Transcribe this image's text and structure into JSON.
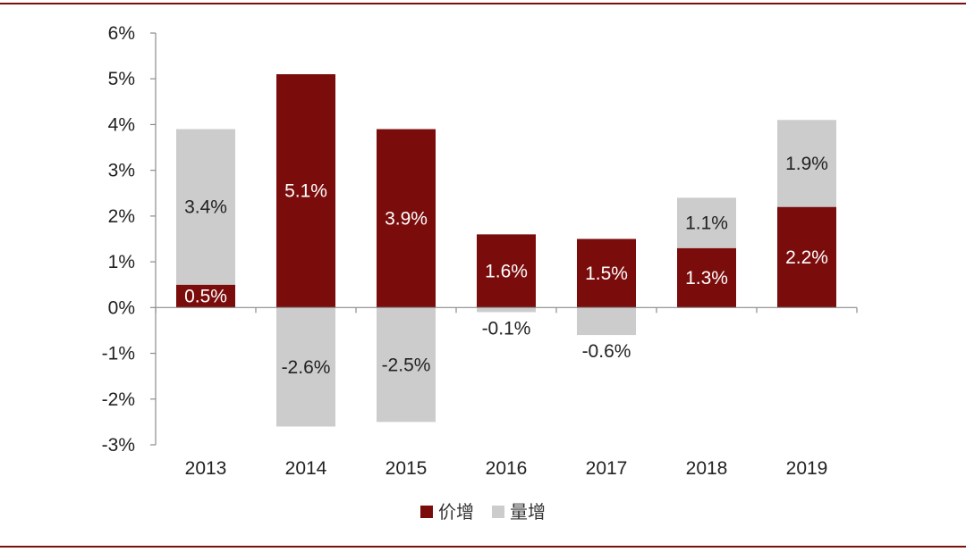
{
  "chart_data": {
    "type": "bar",
    "stacked": true,
    "categories": [
      "2013",
      "2014",
      "2015",
      "2016",
      "2017",
      "2018",
      "2019"
    ],
    "series": [
      {
        "name": "价增",
        "color": "#7b0c0c",
        "values": [
          0.5,
          5.1,
          3.9,
          1.6,
          1.5,
          1.3,
          2.2
        ],
        "labels": [
          "0.5%",
          "5.1%",
          "3.9%",
          "1.6%",
          "1.5%",
          "1.3%",
          "2.2%"
        ]
      },
      {
        "name": "量增",
        "color": "#cccccc",
        "values": [
          3.4,
          -2.6,
          -2.5,
          -0.1,
          -0.6,
          1.1,
          1.9
        ],
        "labels": [
          "3.4%",
          "-2.6%",
          "-2.5%",
          "-0.1%",
          "-0.6%",
          "1.1%",
          "1.9%"
        ]
      }
    ],
    "ylim": [
      -3,
      6
    ],
    "yticks": [
      6,
      5,
      4,
      3,
      2,
      1,
      0,
      -1,
      -2,
      -3
    ],
    "ytick_labels": [
      "6%",
      "5%",
      "4%",
      "3%",
      "2%",
      "1%",
      "0%",
      "-1%",
      "-2%",
      "-3%"
    ],
    "legend_position": "bottom-center",
    "grid": false
  }
}
